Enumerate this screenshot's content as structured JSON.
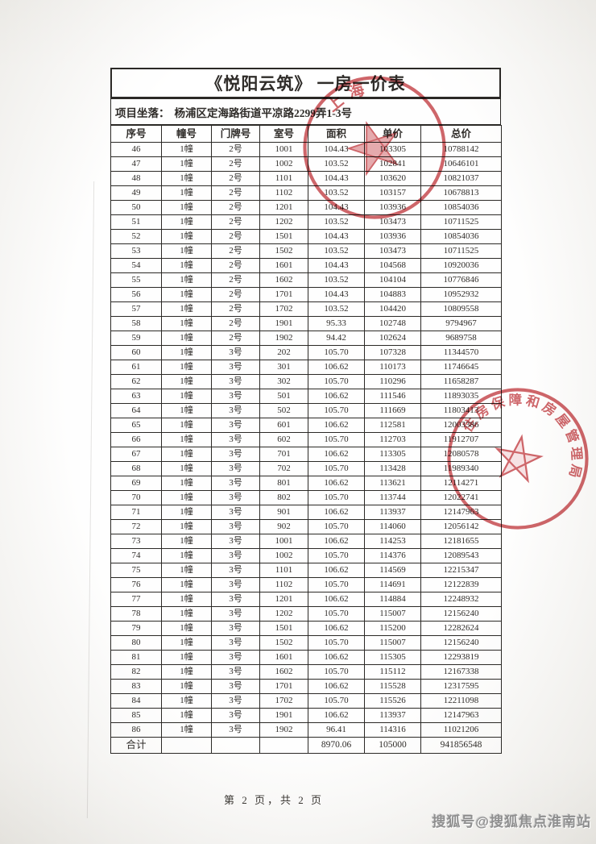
{
  "page": {
    "title": "《悦阳云筑》 一房一价表",
    "location_label": "项目坐落：",
    "location_value": "杨浦区定海路街道平凉路2299弄1-3号",
    "footer": "第 2 页，共 2 页",
    "watermark": "搜狐号@搜狐焦点淮南站"
  },
  "colors": {
    "stamp_red": "#c23a40",
    "border": "#2b2926",
    "text": "#2f2c29"
  },
  "stamps": [
    {
      "name": "top-stamp",
      "arc_text": "上海"
    },
    {
      "name": "mid-stamp",
      "arc_text": "住房保障和房屋管理局"
    }
  ],
  "table": {
    "headers": [
      "序号",
      "幢号",
      "门牌号",
      "室号",
      "面积",
      "单价",
      "总价"
    ],
    "rows": [
      [
        "46",
        "1幢",
        "2号",
        "1001",
        "104.43",
        "103305",
        "10788142"
      ],
      [
        "47",
        "1幢",
        "2号",
        "1002",
        "103.52",
        "102841",
        "10646101"
      ],
      [
        "48",
        "1幢",
        "2号",
        "1101",
        "104.43",
        "103620",
        "10821037"
      ],
      [
        "49",
        "1幢",
        "2号",
        "1102",
        "103.52",
        "103157",
        "10678813"
      ],
      [
        "50",
        "1幢",
        "2号",
        "1201",
        "104.43",
        "103936",
        "10854036"
      ],
      [
        "51",
        "1幢",
        "2号",
        "1202",
        "103.52",
        "103473",
        "10711525"
      ],
      [
        "52",
        "1幢",
        "2号",
        "1501",
        "104.43",
        "103936",
        "10854036"
      ],
      [
        "53",
        "1幢",
        "2号",
        "1502",
        "103.52",
        "103473",
        "10711525"
      ],
      [
        "54",
        "1幢",
        "2号",
        "1601",
        "104.43",
        "104568",
        "10920036"
      ],
      [
        "55",
        "1幢",
        "2号",
        "1602",
        "103.52",
        "104104",
        "10776846"
      ],
      [
        "56",
        "1幢",
        "2号",
        "1701",
        "104.43",
        "104883",
        "10952932"
      ],
      [
        "57",
        "1幢",
        "2号",
        "1702",
        "103.52",
        "104420",
        "10809558"
      ],
      [
        "58",
        "1幢",
        "2号",
        "1901",
        "95.33",
        "102748",
        "9794967"
      ],
      [
        "59",
        "1幢",
        "2号",
        "1902",
        "94.42",
        "102624",
        "9689758"
      ],
      [
        "60",
        "1幢",
        "3号",
        "202",
        "105.70",
        "107328",
        "11344570"
      ],
      [
        "61",
        "1幢",
        "3号",
        "301",
        "106.62",
        "110173",
        "11746645"
      ],
      [
        "62",
        "1幢",
        "3号",
        "302",
        "105.70",
        "110296",
        "11658287"
      ],
      [
        "63",
        "1幢",
        "3号",
        "501",
        "106.62",
        "111546",
        "11893035"
      ],
      [
        "64",
        "1幢",
        "3号",
        "502",
        "105.70",
        "111669",
        "11803413"
      ],
      [
        "65",
        "1幢",
        "3号",
        "601",
        "106.62",
        "112581",
        "12003386"
      ],
      [
        "66",
        "1幢",
        "3号",
        "602",
        "105.70",
        "112703",
        "11912707"
      ],
      [
        "67",
        "1幢",
        "3号",
        "701",
        "106.62",
        "113305",
        "12080578"
      ],
      [
        "68",
        "1幢",
        "3号",
        "702",
        "105.70",
        "113428",
        "11989340"
      ],
      [
        "69",
        "1幢",
        "3号",
        "801",
        "106.62",
        "113621",
        "12114271"
      ],
      [
        "70",
        "1幢",
        "3号",
        "802",
        "105.70",
        "113744",
        "12022741"
      ],
      [
        "71",
        "1幢",
        "3号",
        "901",
        "106.62",
        "113937",
        "12147963"
      ],
      [
        "72",
        "1幢",
        "3号",
        "902",
        "105.70",
        "114060",
        "12056142"
      ],
      [
        "73",
        "1幢",
        "3号",
        "1001",
        "106.62",
        "114253",
        "12181655"
      ],
      [
        "74",
        "1幢",
        "3号",
        "1002",
        "105.70",
        "114376",
        "12089543"
      ],
      [
        "75",
        "1幢",
        "3号",
        "1101",
        "106.62",
        "114569",
        "12215347"
      ],
      [
        "76",
        "1幢",
        "3号",
        "1102",
        "105.70",
        "114691",
        "12122839"
      ],
      [
        "77",
        "1幢",
        "3号",
        "1201",
        "106.62",
        "114884",
        "12248932"
      ],
      [
        "78",
        "1幢",
        "3号",
        "1202",
        "105.70",
        "115007",
        "12156240"
      ],
      [
        "79",
        "1幢",
        "3号",
        "1501",
        "106.62",
        "115200",
        "12282624"
      ],
      [
        "80",
        "1幢",
        "3号",
        "1502",
        "105.70",
        "115007",
        "12156240"
      ],
      [
        "81",
        "1幢",
        "3号",
        "1601",
        "106.62",
        "115305",
        "12293819"
      ],
      [
        "82",
        "1幢",
        "3号",
        "1602",
        "105.70",
        "115112",
        "12167338"
      ],
      [
        "83",
        "1幢",
        "3号",
        "1701",
        "106.62",
        "115528",
        "12317595"
      ],
      [
        "84",
        "1幢",
        "3号",
        "1702",
        "105.70",
        "115526",
        "12211098"
      ],
      [
        "85",
        "1幢",
        "3号",
        "1901",
        "106.62",
        "113937",
        "12147963"
      ],
      [
        "86",
        "1幢",
        "3号",
        "1902",
        "96.41",
        "114316",
        "11021206"
      ]
    ],
    "total_row": [
      "合计",
      "",
      "",
      "",
      "8970.06",
      "105000",
      "941856548"
    ]
  }
}
